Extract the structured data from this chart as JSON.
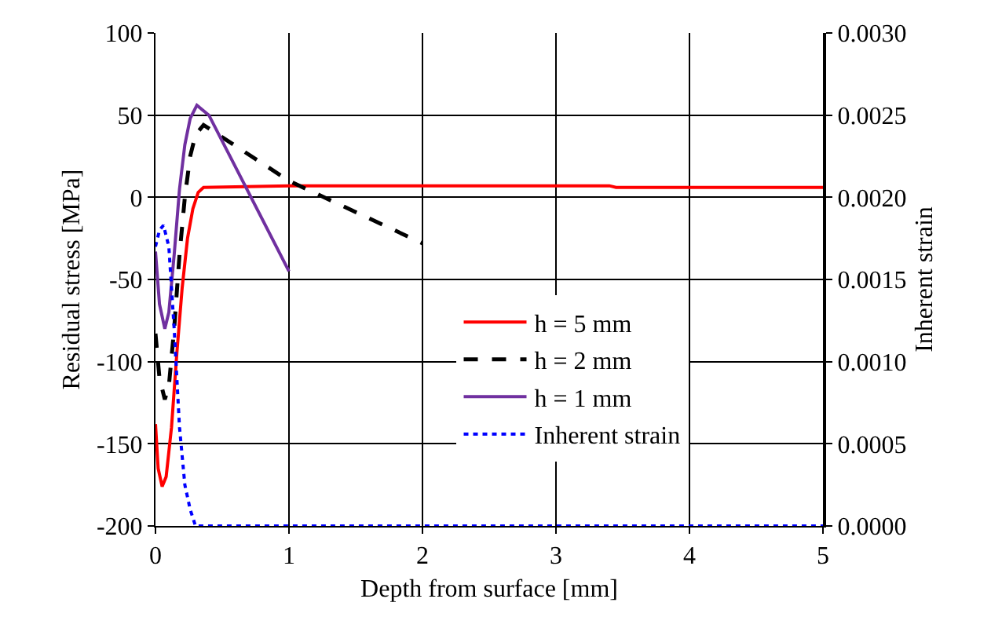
{
  "chart_data": {
    "type": "line",
    "xlabel": "Depth from surface [mm]",
    "ylabel": "Residual stress [MPa]",
    "y2label": "Inherent strain",
    "xlim": [
      0,
      5
    ],
    "xticks": [
      0,
      1,
      2,
      3,
      4,
      5
    ],
    "ylim": [
      -200,
      100
    ],
    "yticks": [
      -200,
      -150,
      -100,
      -50,
      0,
      50,
      100
    ],
    "y2lim": [
      0,
      0.003
    ],
    "y2ticks": [
      {
        "value": 0,
        "label": "0.0000"
      },
      {
        "value": 0.0005,
        "label": "0.0005"
      },
      {
        "value": 0.001,
        "label": "0.0010"
      },
      {
        "value": 0.0015,
        "label": "0.0015"
      },
      {
        "value": 0.002,
        "label": "0.0020"
      },
      {
        "value": 0.0025,
        "label": "0.0025"
      },
      {
        "value": 0.003,
        "label": "0.0030"
      }
    ],
    "grid": true,
    "legend": "right",
    "marker": "none",
    "series": [
      {
        "name": "h = 5 mm",
        "color": "#ff0000",
        "line_style": "solid",
        "x": [
          0,
          0.02,
          0.05,
          0.08,
          0.12,
          0.16,
          0.2,
          0.24,
          0.28,
          0.32,
          0.36,
          1,
          2,
          3,
          3.4,
          3.45,
          5
        ],
        "values": [
          -138,
          -165,
          -176,
          -170,
          -140,
          -95,
          -55,
          -25,
          -7,
          3,
          6,
          7,
          7,
          7,
          7,
          6,
          6
        ]
      },
      {
        "name": "h = 2 mm",
        "color": "#000000",
        "line_style": "dashed",
        "x": [
          0,
          0.03,
          0.07,
          0.1,
          0.14,
          0.18,
          0.22,
          0.26,
          0.3,
          0.36,
          1,
          2
        ],
        "values": [
          -83,
          -110,
          -123,
          -115,
          -80,
          -35,
          0,
          25,
          38,
          44,
          10,
          -28
        ]
      },
      {
        "name": "h = 1 mm",
        "color": "#7030a0",
        "line_style": "solid",
        "x": [
          0,
          0.03,
          0.07,
          0.1,
          0.14,
          0.18,
          0.22,
          0.26,
          0.31,
          0.4,
          1
        ],
        "values": [
          -33,
          -65,
          -80,
          -70,
          -35,
          5,
          32,
          48,
          56,
          50,
          -45
        ]
      },
      {
        "name": "Inherent strain",
        "color": "#0000ff",
        "line_style": "dotted",
        "axis": "y2",
        "x": [
          0,
          0.03,
          0.06,
          0.1,
          0.14,
          0.18,
          0.22,
          0.26,
          0.3,
          0.36,
          1,
          2,
          3,
          4,
          5
        ],
        "values": [
          0.0017,
          0.0018,
          0.00183,
          0.0017,
          0.0012,
          0.0006,
          0.00025,
          0.0001,
          0,
          0,
          0,
          0,
          0,
          0,
          0
        ]
      }
    ]
  }
}
